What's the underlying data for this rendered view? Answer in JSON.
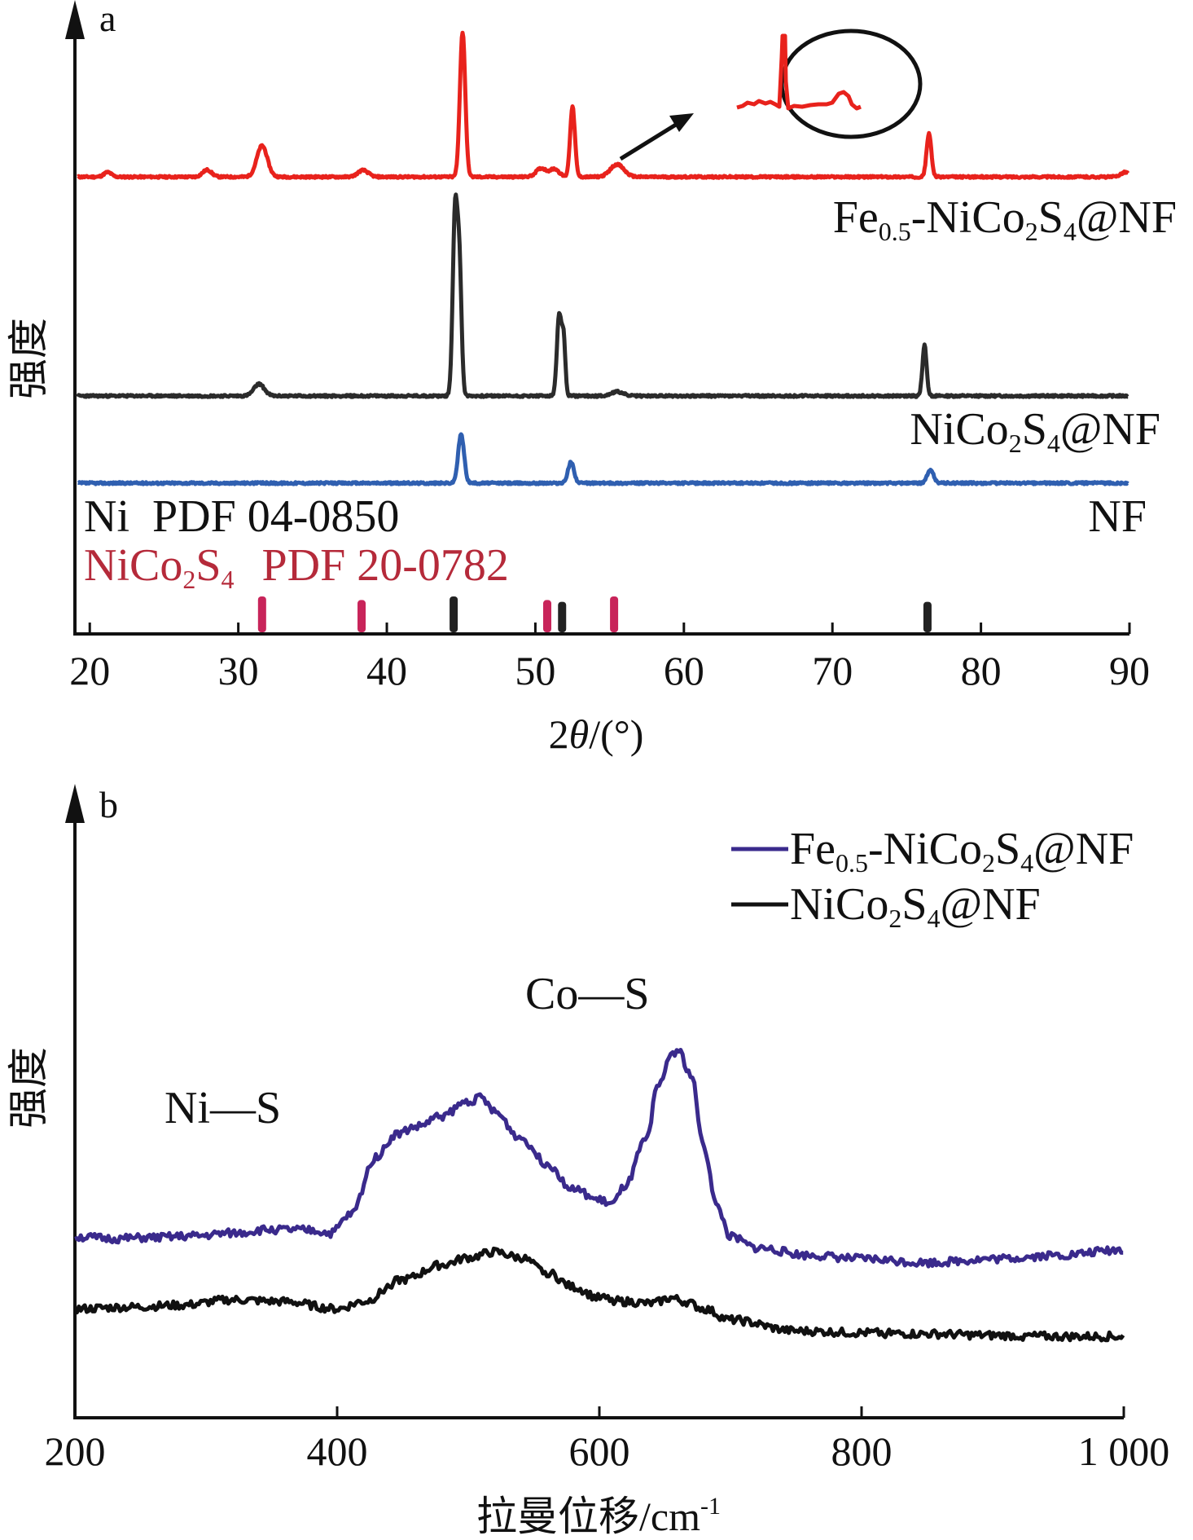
{
  "chart_data": [
    {
      "type": "line",
      "panel_label": "a",
      "ylabel": "强度",
      "xlabel_prefix": "2",
      "xlabel_theta": "θ",
      "xlabel_unit": "/(°)",
      "xlim": [
        19,
        90
      ],
      "xticks": [
        20,
        30,
        40,
        50,
        60,
        70,
        80,
        90
      ],
      "series": [
        {
          "name_main": "Fe",
          "name_sub1": "0.5",
          "name_mid": "-NiCo",
          "name_sub2": "2",
          "name_s": "S",
          "name_sub3": "4",
          "name_end": "@NF",
          "color": "#e8221c",
          "baseline": 0.06,
          "peaks": [
            [
              21.2,
              0.12,
              0.25
            ],
            [
              27.9,
              0.18,
              0.3
            ],
            [
              31.6,
              0.8,
              0.35
            ],
            [
              38.4,
              0.17,
              0.35
            ],
            [
              45.1,
              3.7,
              0.18
            ],
            [
              50.4,
              0.22,
              0.35
            ],
            [
              51.3,
              0.2,
              0.3
            ],
            [
              52.5,
              1.8,
              0.16
            ],
            [
              55.5,
              0.32,
              0.45
            ],
            [
              76.5,
              1.1,
              0.16
            ],
            [
              89.7,
              0.12,
              0.3
            ]
          ]
        },
        {
          "name_main": "NiCo",
          "name_sub1": "2",
          "name_mid": "S",
          "name_sub2": "4",
          "name_end": "@NF",
          "color": "#2b2b2b",
          "baseline": 0.04,
          "peaks": [
            [
              31.4,
              0.28,
              0.35
            ],
            [
              44.6,
              4.4,
              0.16
            ],
            [
              44.9,
              2.8,
              0.14
            ],
            [
              51.6,
              1.9,
              0.15
            ],
            [
              51.9,
              1.3,
              0.12
            ],
            [
              55.5,
              0.1,
              0.4
            ],
            [
              76.2,
              1.2,
              0.14
            ]
          ]
        },
        {
          "name": "NF",
          "color": "#2f5fb0",
          "baseline": 0.04,
          "peaks": [
            [
              45.0,
              1.15,
              0.2
            ],
            [
              52.4,
              0.5,
              0.2
            ],
            [
              76.6,
              0.3,
              0.22
            ]
          ]
        }
      ],
      "reference_label_ni": "Ni  PDF 04-0850",
      "reference_label_nico_main": "NiCo",
      "reference_label_nico_sub1": "2",
      "reference_label_nico_s": "S",
      "reference_label_nico_sub2": "4",
      "reference_label_nico_pdf": "PDF 20-0782",
      "references": {
        "Ni": {
          "color": "#222222",
          "lines": [
            [
              44.5,
              1.0
            ],
            [
              51.8,
              0.85
            ],
            [
              76.4,
              0.85
            ]
          ]
        },
        "NiCo2S4": {
          "color": "#c8245a",
          "lines": [
            [
              31.6,
              1.0
            ],
            [
              38.3,
              0.9
            ],
            [
              50.8,
              0.9
            ],
            [
              55.3,
              1.0
            ]
          ]
        }
      },
      "inset": {
        "shape": "oval",
        "points_to_x": 55.6
      }
    },
    {
      "type": "line",
      "panel_label": "b",
      "ylabel": "强度",
      "xlabel": "拉曼位移/cm",
      "xlabel_sup": "-1",
      "xlim": [
        200,
        1000
      ],
      "xticks": [
        200,
        400,
        600,
        800,
        1000
      ],
      "xtick_labels": [
        "200",
        "400",
        "600",
        "800",
        "1 000"
      ],
      "annotations": [
        {
          "text": "Ni—S",
          "x": 340
        },
        {
          "text": "Co—S",
          "x": 600
        }
      ],
      "series": [
        {
          "name_main": "Fe",
          "name_sub1": "0.5",
          "name_mid": "-NiCo",
          "name_sub2": "2",
          "name_s": "S",
          "name_sub3": "4",
          "name_end": "@NF",
          "color": "#3a2a8c",
          "x": [
            200,
            230,
            260,
            290,
            320,
            350,
            380,
            395,
            410,
            430,
            445,
            460,
            480,
            500,
            510,
            520,
            540,
            560,
            580,
            600,
            610,
            620,
            635,
            645,
            655,
            660,
            670,
            680,
            690,
            700,
            720,
            760,
            800,
            850,
            900,
            950,
            1000
          ],
          "y": [
            0.6,
            0.55,
            0.58,
            0.62,
            0.7,
            0.8,
            0.78,
            0.7,
            1.2,
            2.8,
            3.4,
            3.6,
            3.9,
            4.3,
            4.4,
            4.0,
            3.3,
            2.6,
            1.9,
            1.6,
            1.5,
            2.0,
            3.2,
            4.7,
            5.6,
            5.7,
            5.0,
            3.0,
            1.4,
            0.6,
            0.3,
            0.1,
            0.0,
            -0.1,
            0.0,
            0.1,
            0.25
          ]
        },
        {
          "name_main": "NiCo",
          "name_sub1": "2",
          "name_mid": "S",
          "name_sub2": "4",
          "name_end": "@NF",
          "color": "#111111",
          "x": [
            200,
            240,
            280,
            320,
            360,
            400,
            420,
            450,
            480,
            500,
            520,
            540,
            560,
            580,
            600,
            620,
            640,
            655,
            665,
            680,
            700,
            750,
            800,
            850,
            900,
            950,
            1000
          ],
          "y": [
            0.3,
            0.35,
            0.4,
            0.55,
            0.5,
            0.3,
            0.5,
            1.1,
            1.5,
            1.7,
            1.85,
            1.7,
            1.3,
            0.9,
            0.6,
            0.5,
            0.45,
            0.6,
            0.5,
            0.3,
            0.0,
            -0.3,
            -0.35,
            -0.38,
            -0.42,
            -0.45,
            -0.45
          ]
        }
      ]
    }
  ]
}
